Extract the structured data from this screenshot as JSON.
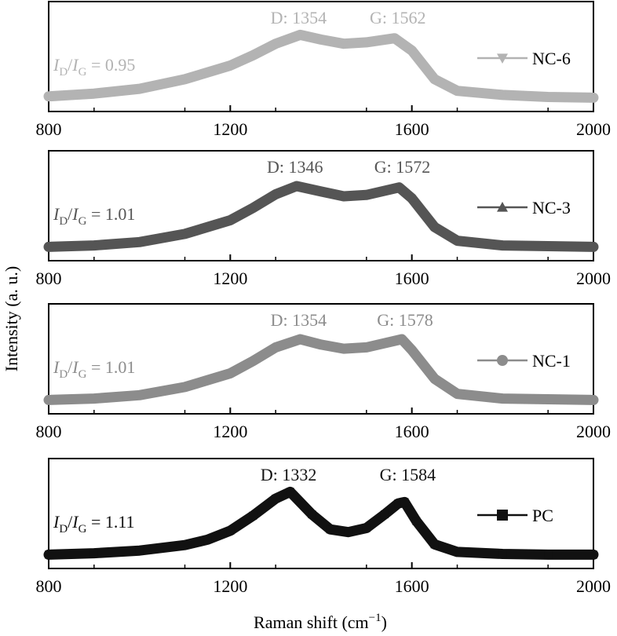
{
  "chart_data": {
    "type": "line",
    "xlabel_main": "Raman shift (cm",
    "xlabel_sup": "−1",
    "xlabel_close": ")",
    "ylabel": "Intensity (a. u.)",
    "xlim": [
      800,
      2000
    ],
    "xticks": [
      800,
      1200,
      1600,
      2000
    ],
    "ratio_prefix_I": "I",
    "ratio_sub_D": "D",
    "ratio_slash": "/",
    "ratio_sub_G": "G",
    "panels": [
      {
        "name": "NC-6",
        "color": "#b3b3b3",
        "marker": "triangle-down",
        "ratio_value": " = 0.95",
        "d_label": "D: 1354",
        "g_label": "G: 1562",
        "d_peak": 1354,
        "g_peak": 1562,
        "x": [
          800,
          900,
          1000,
          1100,
          1200,
          1250,
          1300,
          1354,
          1400,
          1450,
          1500,
          1562,
          1600,
          1650,
          1700,
          1800,
          1900,
          2000
        ],
        "y": [
          0.05,
          0.09,
          0.16,
          0.3,
          0.5,
          0.65,
          0.82,
          0.95,
          0.88,
          0.82,
          0.84,
          0.9,
          0.72,
          0.3,
          0.13,
          0.07,
          0.04,
          0.03
        ]
      },
      {
        "name": "NC-3",
        "color": "#555555",
        "marker": "triangle-up",
        "ratio_value": " = 1.01",
        "d_label": "D: 1346",
        "g_label": "G: 1572",
        "d_peak": 1346,
        "g_peak": 1572,
        "x": [
          800,
          900,
          1000,
          1100,
          1200,
          1250,
          1300,
          1346,
          1400,
          1450,
          1500,
          1572,
          1600,
          1650,
          1700,
          1800,
          1900,
          2000
        ],
        "y": [
          0.03,
          0.05,
          0.1,
          0.22,
          0.42,
          0.6,
          0.8,
          0.92,
          0.84,
          0.77,
          0.79,
          0.9,
          0.74,
          0.32,
          0.12,
          0.05,
          0.04,
          0.03
        ]
      },
      {
        "name": "NC-1",
        "color": "#8c8c8c",
        "marker": "circle",
        "ratio_value": " = 1.01",
        "d_label": "D: 1354",
        "g_label": "G: 1578",
        "d_peak": 1354,
        "g_peak": 1578,
        "x": [
          800,
          900,
          1000,
          1100,
          1200,
          1250,
          1300,
          1354,
          1400,
          1450,
          1500,
          1578,
          1600,
          1650,
          1700,
          1800,
          1900,
          2000
        ],
        "y": [
          0.03,
          0.05,
          0.1,
          0.22,
          0.42,
          0.6,
          0.8,
          0.92,
          0.84,
          0.78,
          0.8,
          0.92,
          0.76,
          0.34,
          0.12,
          0.05,
          0.04,
          0.03
        ]
      },
      {
        "name": "PC",
        "color": "#111111",
        "marker": "square",
        "ratio_value": " = 1.11",
        "d_label": "D: 1332",
        "g_label": "G: 1584",
        "d_peak": 1332,
        "g_peak": 1584,
        "x": [
          800,
          900,
          1000,
          1100,
          1150,
          1200,
          1250,
          1300,
          1332,
          1380,
          1420,
          1460,
          1500,
          1540,
          1570,
          1584,
          1610,
          1650,
          1700,
          1800,
          1900,
          2000
        ],
        "y": [
          0.03,
          0.05,
          0.09,
          0.17,
          0.25,
          0.38,
          0.6,
          0.85,
          0.95,
          0.62,
          0.4,
          0.36,
          0.42,
          0.62,
          0.78,
          0.8,
          0.52,
          0.18,
          0.07,
          0.04,
          0.03,
          0.03
        ]
      }
    ]
  }
}
